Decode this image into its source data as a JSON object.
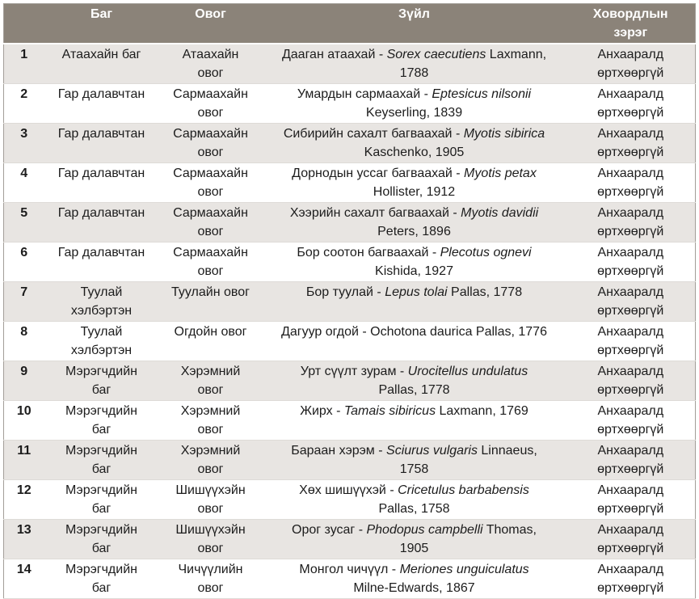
{
  "colors": {
    "header_bg": "#8b8379",
    "header_text": "#ffffff",
    "row_alt_bg": "#e8e5e2",
    "row_bg": "#ffffff",
    "body_text": "#1c1c1c"
  },
  "table": {
    "headers": {
      "num": "",
      "order": "Баг",
      "family": "Овог",
      "species": "Зүйл",
      "status": "Ховордлын зэрэг"
    },
    "rows": [
      {
        "num": "1",
        "order": "Атаахайн баг",
        "family": "Атаахайн овог",
        "species": {
          "prefix": "Дааган атаахай - ",
          "sci": "Sorex caecutiens",
          "suffix": " Laxmann, 1788"
        },
        "status": "Анхааралд өртхөөргүй"
      },
      {
        "num": "2",
        "order": "Гар далавчтан",
        "family": "Сармаахайн овог",
        "species": {
          "prefix": "Умардын сармаахай - ",
          "sci": "Eptesicus nilsonii",
          "suffix": " Keyserling, 1839"
        },
        "status": "Анхааралд өртхөөргүй"
      },
      {
        "num": "3",
        "order": "Гар далавчтан",
        "family": "Сармаахайн овог",
        "species": {
          "prefix": "Сибирийн сахалт багваахай - ",
          "sci": "Myotis sibirica",
          "suffix": " Kaschenko, 1905"
        },
        "status": "Анхааралд өртхөөргүй"
      },
      {
        "num": "4",
        "order": "Гар далавчтан",
        "family": "Сармаахайн овог",
        "species": {
          "prefix": "Дорнодын уссаг багваахай - ",
          "sci": "Myotis petax",
          "suffix": " Hollister, 1912"
        },
        "status": "Анхааралд өртхөөргүй"
      },
      {
        "num": "5",
        "order": "Гар далавчтан",
        "family": "Сармаахайн овог",
        "species": {
          "prefix": "Хээрийн сахалт багваахай - ",
          "sci": "Myotis davidii",
          "suffix": " Peters, 1896"
        },
        "status": "Анхааралд өртхөөргүй"
      },
      {
        "num": "6",
        "order": "Гар далавчтан",
        "family": "Сармаахайн овог",
        "species": {
          "prefix": "Бор соотон багваахай - ",
          "sci": "Plecotus ognevi",
          "suffix": " Kishida, 1927"
        },
        "status": "Анхааралд өртхөөргүй"
      },
      {
        "num": "7",
        "order": "Туулай хэлбэртэн",
        "family": "Туулайн овог",
        "species": {
          "prefix": "Бор туулай - ",
          "sci": "Lepus tolai",
          "suffix": " Pallas, 1778"
        },
        "status": "Анхааралд өртхөөргүй"
      },
      {
        "num": "8",
        "order": "Туулай хэлбэртэн",
        "family": "Огдойн овог",
        "species": {
          "prefix": "Дагуур огдой - Ochotona daurica Pallas, 1776",
          "sci": "",
          "suffix": ""
        },
        "status": "Анхааралд өртхөөргүй"
      },
      {
        "num": "9",
        "order": "Мэрэгчдийн баг",
        "family": "Хэрэмний овог",
        "species": {
          "prefix": "Урт сүүлт зурам - ",
          "sci": "Urocitellus undulatus",
          "suffix": " Pallas, 1778"
        },
        "status": "Анхааралд өртхөөргүй"
      },
      {
        "num": "10",
        "order": "Мэрэгчдийн баг",
        "family": "Хэрэмний овог",
        "species": {
          "prefix": "Жирх - ",
          "sci": "Tamais sibiricus",
          "suffix": " Laxmann, 1769"
        },
        "status": "Анхааралд өртхөөргүй"
      },
      {
        "num": "11",
        "order": "Мэрэгчдийн баг",
        "family": "Хэрэмний овог",
        "species": {
          "prefix": "Бараан хэрэм - ",
          "sci": "Sciurus vulgaris",
          "suffix": " Linnaeus, 1758"
        },
        "status": "Анхааралд өртхөөргүй"
      },
      {
        "num": "12",
        "order": "Мэрэгчдийн баг",
        "family": "Шишүүхэйн овог",
        "species": {
          "prefix": "Хөх шишүүхэй - ",
          "sci": "Cricetulus barbabensis",
          "suffix": " Pallas, 1758"
        },
        "status": "Анхааралд өртхөөргүй"
      },
      {
        "num": "13",
        "order": "Мэрэгчдийн баг",
        "family": "Шишүүхэйн овог",
        "species": {
          "prefix": "Орог зусаг - ",
          "sci": "Phodopus campbelli",
          "suffix": " Thomas, 1905"
        },
        "status": "Анхааралд өртхөөргүй"
      },
      {
        "num": "14",
        "order": "Мэрэгчдийн баг",
        "family": "Чичүүлийн овог",
        "species": {
          "prefix": "Монгол чичүүл - ",
          "sci": "Meriones unguiculatus",
          "suffix": " Milne-Edwards, 1867"
        },
        "status": "Анхааралд өртхөөргүй"
      }
    ]
  }
}
